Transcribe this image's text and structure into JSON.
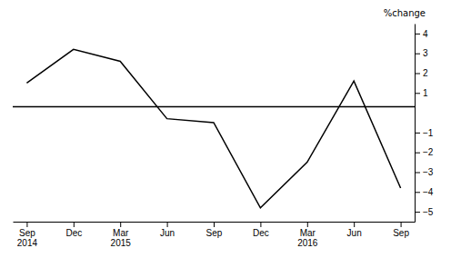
{
  "chart_data": {
    "type": "line",
    "categories": [
      "Sep\n2014",
      "Dec",
      "Mar\n2015",
      "Jun",
      "Sep",
      "Dec",
      "Mar\n2016",
      "Jun",
      "Sep"
    ],
    "values": [
      1.5,
      3.2,
      2.6,
      -0.3,
      -0.5,
      -4.8,
      -2.5,
      1.6,
      -3.8
    ],
    "color": "#000000",
    "reference_line": 0.3,
    "y_label": "%change",
    "ylim": [
      -5.5,
      4.5
    ],
    "yticks": [
      {
        "value": -5,
        "label": "−5"
      },
      {
        "value": -4,
        "label": "−4"
      },
      {
        "value": -3,
        "label": "−3"
      },
      {
        "value": -2,
        "label": "−2"
      },
      {
        "value": -1,
        "label": "−1"
      },
      1,
      2,
      3,
      4
    ],
    "grid": false
  }
}
